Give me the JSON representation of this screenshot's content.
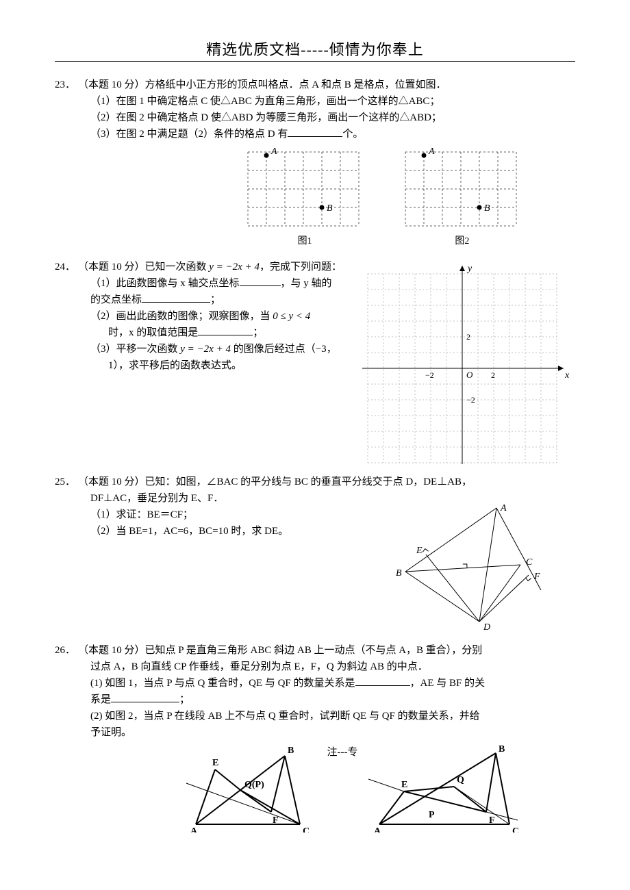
{
  "header": {
    "title": "精选优质文档-----倾情为你奉上"
  },
  "q23": {
    "num": "23．",
    "stem": "（本题 10 分）方格纸中小正方形的顶点叫格点．点 A 和点 B 是格点，位置如图．",
    "p1": "（1）在图 1 中确定格点 C 使△ABC 为直角三角形，画出一个这样的△ABC；",
    "p2": "（2）在图 2 中确定格点 D 使△ABD 为等腰三角形，画出一个这样的△ABD；",
    "p3a": "（3）在图 2 中满足题（2）条件的格点 D 有",
    "p3b": "个。",
    "fig1_label": "图1",
    "fig2_label": "图2",
    "grid": {
      "cols": 6,
      "rows": 4,
      "cell": 27,
      "Ax": 1,
      "Ay": 0,
      "Bx": 4,
      "By": 3,
      "stroke": "#606060",
      "dash": "3,3",
      "text": "#000000"
    }
  },
  "q24": {
    "num": "24．",
    "stem_a": "（本题 10 分）已知一次函数 ",
    "fn": "y = −2x + 4",
    "stem_b": "，完成下列问题：",
    "p1a": "（1）此函数图像与 x 轴交点坐标",
    "p1b": "，与 y 轴的",
    "p1c": "的交点坐标",
    "p1d": "；",
    "p2a": "（2）画出此函数的图像；观察图像，当 ",
    "rng": "0 ≤ y < 4",
    "p2b": "时，x 的取值范围是",
    "p2c": "；",
    "p3a": "（3）平移一次函数 ",
    "p3b": " 的图像后经过点（−3，",
    "p3c": "1），求平移后的函数表达式。",
    "axes": {
      "size": 300,
      "cell": 23,
      "n": 6,
      "stroke": "#c0c0c0",
      "dash": "2,3",
      "axis": "#000000",
      "xlabel": "x",
      "ylabel": "y",
      "origin": "O",
      "tick_pos": "2",
      "tick_neg_x": "−2",
      "tick_neg_y": "−2"
    }
  },
  "q25": {
    "num": "25．",
    "stem": "（本题 10 分）已知：如图，∠BAC 的平分线与 BC 的垂直平分线交于点 D，DE⊥AB，",
    "stem2": "DF⊥AC，垂足分别为 E、F．",
    "p1": "（1）求证：BE＝CF；",
    "p2": "（2）当 BE=1，AC=6，BC=10 时，求 DE。",
    "labels": {
      "A": "A",
      "B": "B",
      "C": "C",
      "D": "D",
      "E": "E",
      "F": "F"
    }
  },
  "q26": {
    "num": "26．",
    "stem": "（本题 10 分）已知点 P 是直角三角形 ABC 斜边 AB 上一动点（不与点 A，B 重合），分别",
    "stem2": "过点 A，B 向直线 CP 作垂线，垂足分别为点 E，F，Q 为斜边 AB 的中点．",
    "p1a": "(1) 如图 1，当点 P 与点 Q 重合时，QE 与 QF 的数量关系是",
    "p1b": "，AE 与 BF 的关",
    "p1c": "系是",
    "p1d": "；",
    "p2": "(2) 如图 2，当点 P 在线段 AB 上不与点 Q 重合时，试判断 QE 与 QF 的数量关系，并给",
    "p2b": "予证明。",
    "mid": "注---专",
    "labels": {
      "A": "A",
      "B": "B",
      "C": "C",
      "E": "E",
      "F": "F",
      "Q": "Q",
      "P": "P",
      "QP": "Q(P)"
    }
  }
}
